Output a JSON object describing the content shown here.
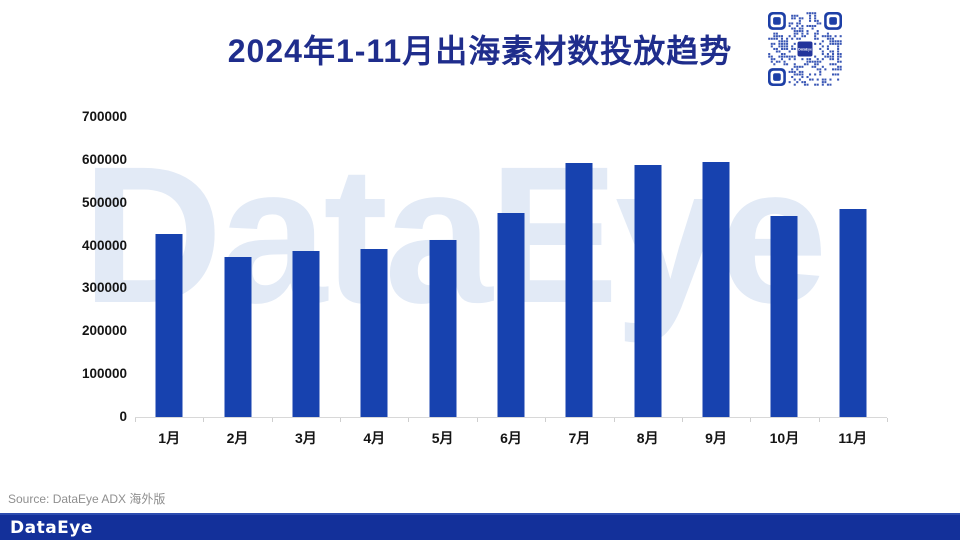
{
  "header": {
    "title": "2024年1-11月出海素材数投放趋势",
    "title_color": "#1f2d8c"
  },
  "qr_code": {
    "center_text": "DataEye",
    "module_color": "#3a57b5",
    "finder_color": "#1d3fa6",
    "center_color": "#22339b"
  },
  "watermark": "DataEye",
  "chart_data": {
    "type": "bar",
    "title": "2024年1-11月出海素材数投放趋势",
    "categories": [
      "1月",
      "2月",
      "3月",
      "4月",
      "5月",
      "6月",
      "7月",
      "8月",
      "9月",
      "10月",
      "11月"
    ],
    "values": [
      428000,
      374000,
      387000,
      392000,
      413000,
      476000,
      592000,
      587000,
      596000,
      469000,
      485000
    ],
    "xlabel": "",
    "ylabel": "",
    "ylim": [
      0,
      700000
    ],
    "yticks": [
      0,
      100000,
      200000,
      300000,
      400000,
      500000,
      600000,
      700000
    ],
    "grid": false,
    "legend": "none",
    "bar_color": "#1742af",
    "axis_color": "#d8d8d8"
  },
  "footer": {
    "source": "Source: DataEye ADX 海外版",
    "logo": "DataEye",
    "bar_color": "#13309a"
  }
}
